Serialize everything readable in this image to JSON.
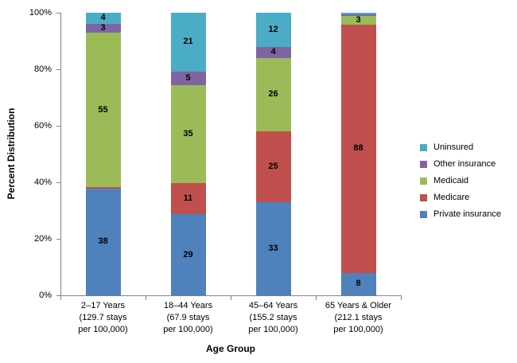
{
  "chart_data": {
    "type": "bar",
    "stacked": true,
    "title": "",
    "xlabel": "Age Group",
    "ylabel": "Percent Distribution",
    "ylim": [
      0,
      100
    ],
    "grid": false,
    "legend_position": "right",
    "yticks": [
      {
        "value": 0,
        "label": "0%"
      },
      {
        "value": 20,
        "label": "20%"
      },
      {
        "value": 40,
        "label": "40%"
      },
      {
        "value": 60,
        "label": "60%"
      },
      {
        "value": 80,
        "label": "80%"
      },
      {
        "value": 100,
        "label": "100%"
      }
    ],
    "categories": [
      {
        "id": "2-17-years",
        "lines": [
          "2–17 Years",
          "(129.7 stays",
          "per 100,000)"
        ]
      },
      {
        "id": "18-44-years",
        "lines": [
          "18–44 Years",
          "(67.9 stays",
          "per 100,000)"
        ]
      },
      {
        "id": "45-64-years",
        "lines": [
          "45–64 Years",
          "(155.2 stays",
          "per 100,000)"
        ]
      },
      {
        "id": "65-years-older",
        "lines": [
          "65 Years & Older",
          "(212.1 stays",
          "per 100,000)"
        ]
      }
    ],
    "series": [
      {
        "name": "Private insurance",
        "color": "#4F81BD",
        "values": [
          38,
          29,
          33,
          8
        ],
        "labels": [
          "38",
          "29",
          "33",
          "8"
        ]
      },
      {
        "name": "Medicare",
        "color": "#C0504D",
        "values": [
          0.4,
          11,
          25,
          88
        ],
        "labels": [
          "",
          "11",
          "25",
          "88"
        ]
      },
      {
        "name": "Medicaid",
        "color": "#9BBB59",
        "values": [
          55,
          35,
          26,
          3
        ],
        "labels": [
          "55",
          "35",
          "26",
          "3"
        ]
      },
      {
        "name": "Other insurance",
        "color": "#8064A2",
        "values": [
          3,
          5,
          4,
          0.6
        ],
        "labels": [
          "3",
          "5",
          "4",
          ""
        ]
      },
      {
        "name": "Uninsured",
        "color": "#4BACC6",
        "values": [
          4,
          21,
          12,
          0.7
        ],
        "labels": [
          "4",
          "21",
          "12",
          ""
        ]
      }
    ],
    "legend": {
      "items": [
        {
          "label": "Uninsured",
          "color": "#4BACC6"
        },
        {
          "label": "Other insurance",
          "color": "#8064A2"
        },
        {
          "label": "Medicaid",
          "color": "#9BBB59"
        },
        {
          "label": "Medicare",
          "color": "#C0504D"
        },
        {
          "label": "Private insurance",
          "color": "#4F81BD"
        }
      ]
    }
  }
}
